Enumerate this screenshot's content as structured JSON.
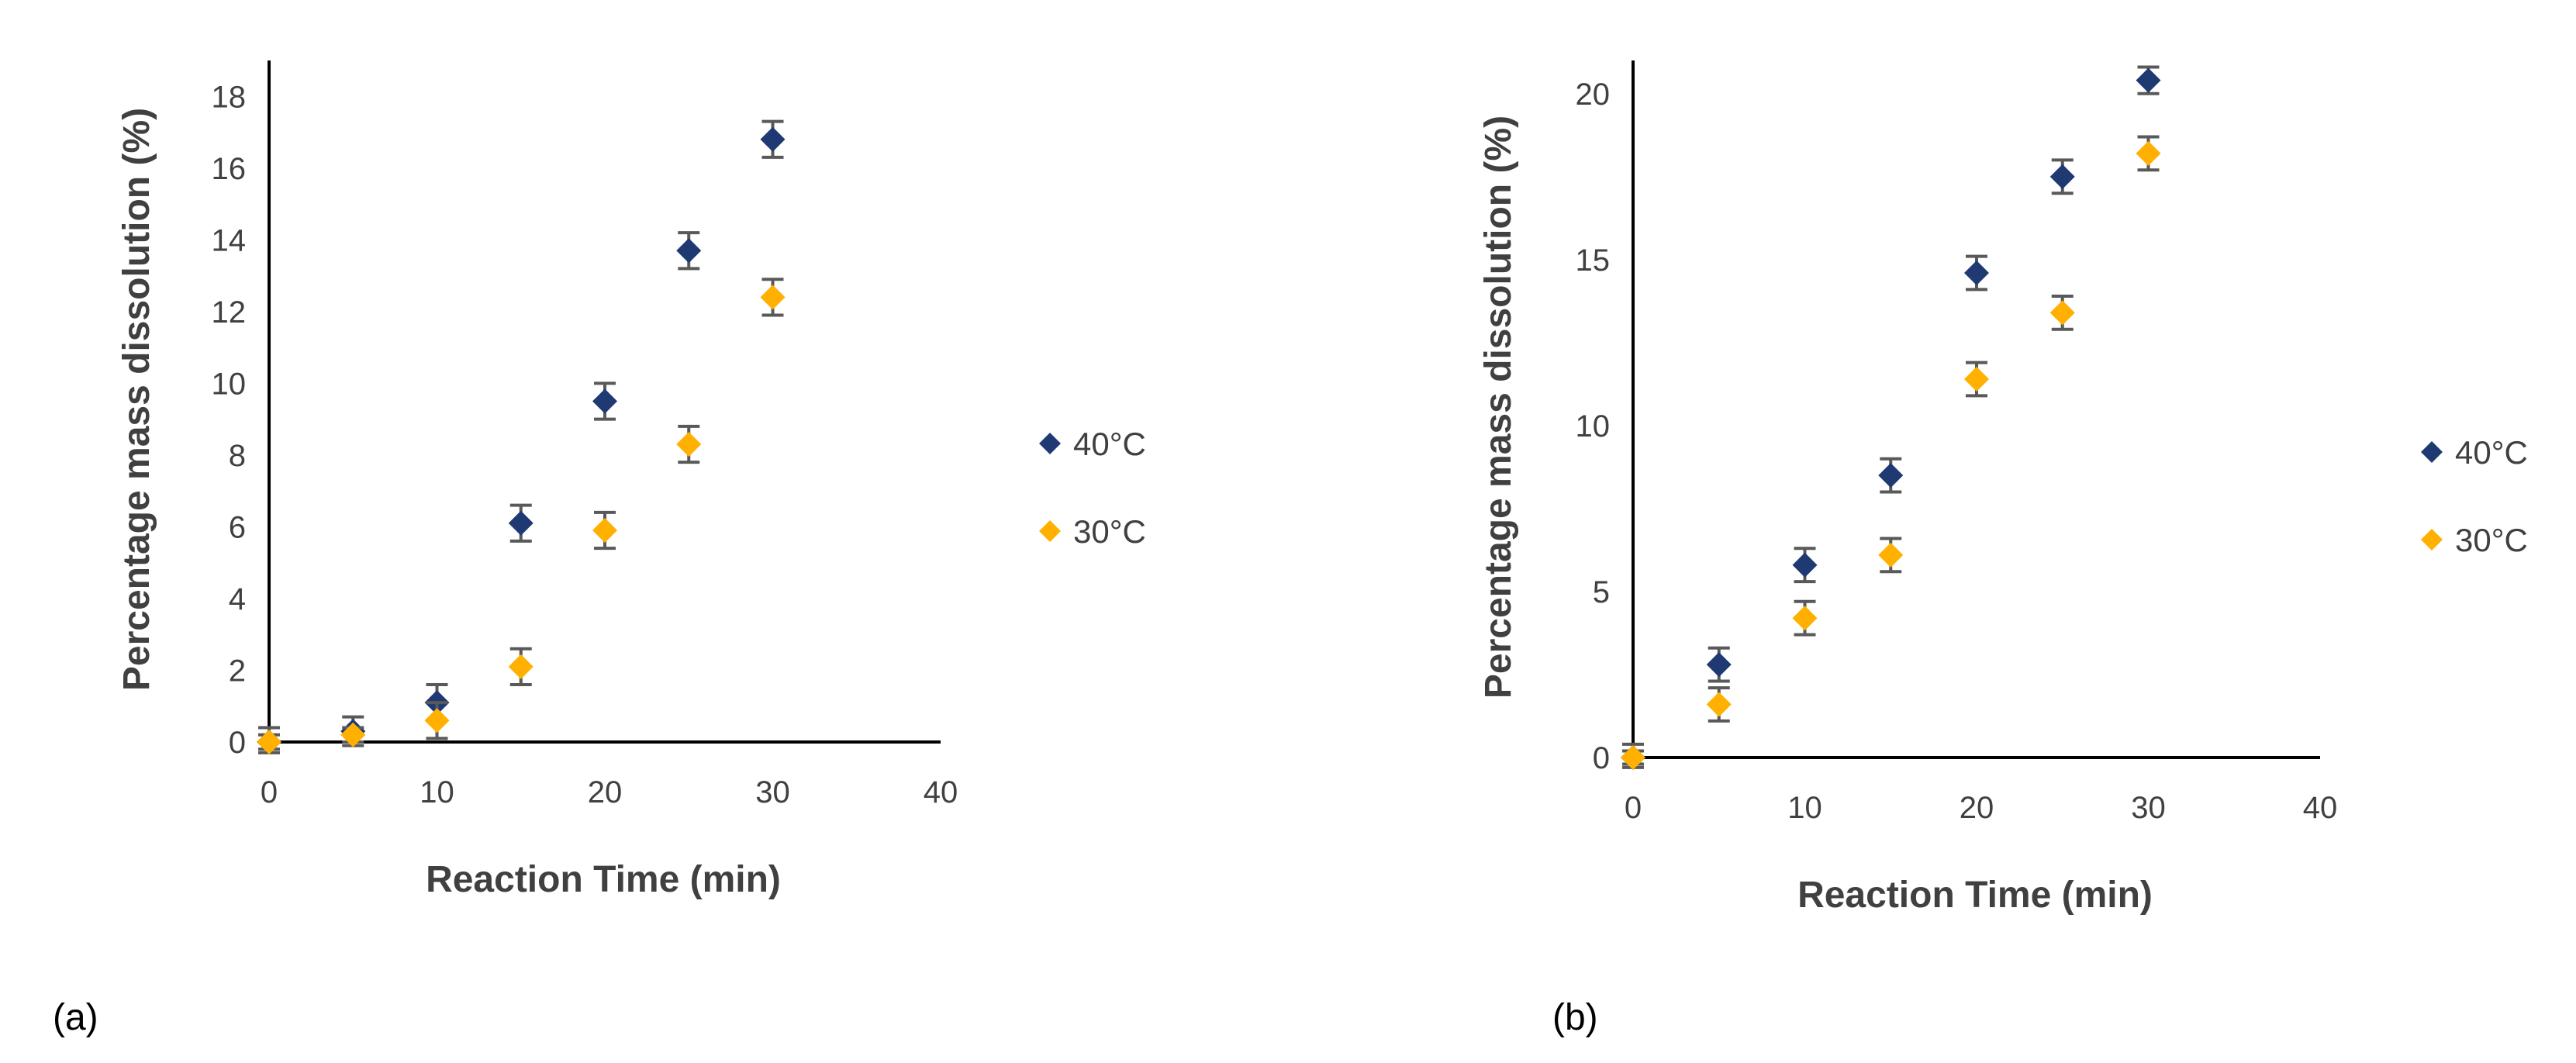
{
  "chart_data": [
    {
      "type": "scatter",
      "panel_label": "(a)",
      "xlabel": "Reaction Time (min)",
      "ylabel": "Percentage mass dissolution (%)",
      "xlim": [
        0,
        40
      ],
      "ylim": [
        0,
        19
      ],
      "xticks": [
        "0",
        "10",
        "20",
        "30",
        "40"
      ],
      "yticks": [
        "0",
        "2",
        "4",
        "6",
        "8",
        "10",
        "12",
        "14",
        "16",
        "18"
      ],
      "grid": false,
      "legend_position": "right",
      "series": [
        {
          "name": "40°C",
          "color": "#1f3a73",
          "x": [
            0,
            5,
            10,
            15,
            20,
            25,
            30
          ],
          "y": [
            0,
            0.3,
            1.1,
            6.1,
            9.5,
            13.7,
            16.8
          ],
          "err": [
            0.4,
            0.4,
            0.5,
            0.5,
            0.5,
            0.5,
            0.5
          ]
        },
        {
          "name": "30°C",
          "color": "#ffb000",
          "x": [
            0,
            5,
            10,
            15,
            20,
            25,
            30
          ],
          "y": [
            0,
            0.2,
            0.6,
            2.1,
            5.9,
            8.3,
            12.4
          ],
          "err": [
            0.2,
            0.2,
            0.5,
            0.5,
            0.5,
            0.5,
            0.5
          ]
        }
      ]
    },
    {
      "type": "scatter",
      "panel_label": "(b)",
      "xlabel": "Reaction Time (min)",
      "ylabel": "Percentage mass dissolution (%)",
      "xlim": [
        0,
        40
      ],
      "ylim": [
        0,
        21
      ],
      "xticks": [
        "0",
        "10",
        "20",
        "30",
        "40"
      ],
      "yticks": [
        "0",
        "5",
        "10",
        "15",
        "20"
      ],
      "grid": false,
      "legend_position": "right",
      "series": [
        {
          "name": "40°C",
          "color": "#1f3a73",
          "x": [
            0,
            5,
            10,
            15,
            20,
            25,
            30
          ],
          "y": [
            0,
            2.8,
            5.8,
            8.5,
            14.6,
            17.5,
            20.4
          ],
          "err": [
            0.4,
            0.5,
            0.5,
            0.5,
            0.5,
            0.5,
            0.4
          ]
        },
        {
          "name": "30°C",
          "color": "#ffb000",
          "x": [
            0,
            5,
            10,
            15,
            20,
            25,
            30
          ],
          "y": [
            0,
            1.6,
            4.2,
            6.1,
            11.4,
            13.4,
            18.2
          ],
          "err": [
            0.2,
            0.5,
            0.5,
            0.5,
            0.5,
            0.5,
            0.5
          ]
        }
      ]
    }
  ]
}
